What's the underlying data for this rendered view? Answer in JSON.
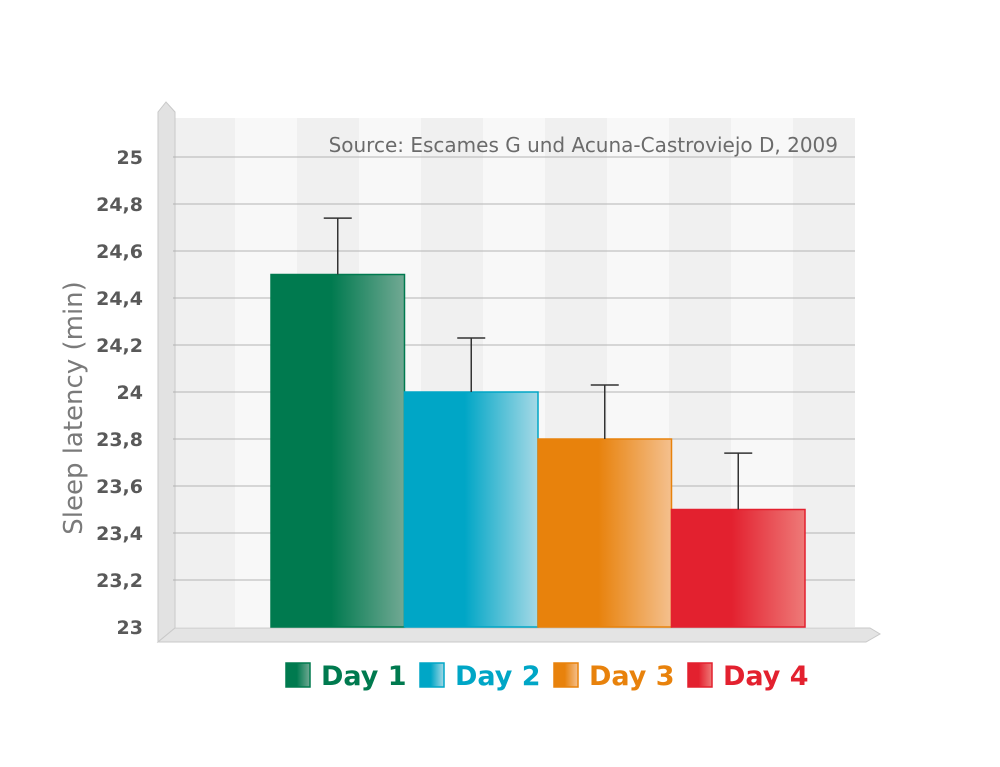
{
  "chart_data": {
    "type": "bar",
    "categories": [
      "Day 1",
      "Day 2",
      "Day 3",
      "Day 4"
    ],
    "series": [
      {
        "name": "Day 1",
        "value": 24.5,
        "error": 0.24,
        "color": "#007a4f",
        "color_light": "#72a994"
      },
      {
        "name": "Day 2",
        "value": 24.0,
        "error": 0.23,
        "color": "#00a6c6",
        "color_light": "#a6d9e6"
      },
      {
        "name": "Day 3",
        "value": 23.8,
        "error": 0.23,
        "color": "#e8820c",
        "color_light": "#f4c08e"
      },
      {
        "name": "Day 4",
        "value": 23.5,
        "error": 0.24,
        "color": "#e3212f",
        "color_light": "#ee7a78"
      }
    ],
    "ylabel": "Sleep latency (min)",
    "annotation": "Source: Escames G und Acuna-Castroviejo D, 2009",
    "ylim": [
      23,
      25.2
    ],
    "yticks": [
      "23",
      "23,2",
      "23,4",
      "23,6",
      "23,8",
      "24",
      "24,2",
      "24,4",
      "24,6",
      "24,8",
      "25"
    ],
    "ytick_values": [
      23,
      23.2,
      23.4,
      23.6,
      23.8,
      24,
      24.2,
      24.4,
      24.6,
      24.8,
      25
    ],
    "grid": true,
    "legend": "bottom"
  }
}
